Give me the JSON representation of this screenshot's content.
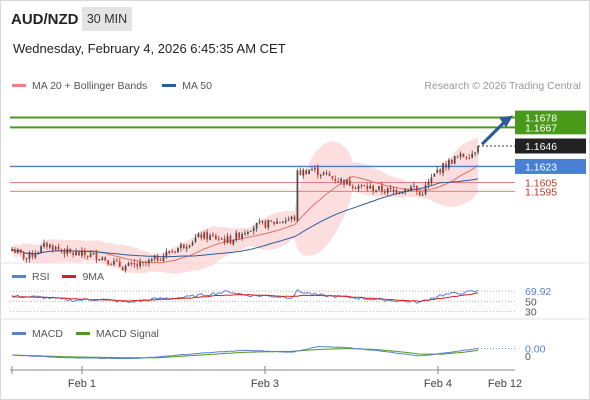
{
  "header": {
    "pair": "AUD/NZD",
    "timeframe": "30 MIN",
    "datetime": "Wednesday, February 4, 2026 6:45:35 AM CET",
    "credit": "Research © 2026 Trading Central"
  },
  "legend": [
    {
      "label": "MA 20 + Bollinger Bands",
      "color": "#f08080"
    },
    {
      "label": "MA 50",
      "color": "#2f5b9a"
    }
  ],
  "rsi_legend": [
    {
      "label": "RSI",
      "color": "#5b7fd1"
    },
    {
      "label": "9MA",
      "color": "#d42020"
    }
  ],
  "macd_legend": [
    {
      "label": "MACD",
      "color": "#5b7fd1"
    },
    {
      "label": "MACD Signal",
      "color": "#4c9a1e"
    }
  ],
  "colors": {
    "up": "#4a4a4a",
    "down": "#c0392b",
    "bb_fill": "#fbd3d3",
    "ma20": "#e07070",
    "ma50": "#2f5b9a",
    "target": "#4a9a1a",
    "pivot": "#4a7fd6",
    "support": "#e08080",
    "arrow": "#2f5b9a"
  },
  "chart_data": [
    {
      "type": "candlestick",
      "title": "AUD/NZD 30 MIN",
      "ylim": [
        1.152,
        1.17
      ],
      "x_ticks": [
        "Feb 1",
        "Feb 3",
        "Feb 4",
        "Feb 12"
      ],
      "seed": 7,
      "path": [
        [
          0,
          1.153
        ],
        [
          5,
          1.152
        ],
        [
          12,
          1.1535
        ],
        [
          20,
          1.1525
        ],
        [
          30,
          1.1522
        ],
        [
          38,
          1.151
        ],
        [
          45,
          1.1512
        ],
        [
          55,
          1.1528
        ],
        [
          65,
          1.1545
        ],
        [
          75,
          1.154
        ],
        [
          82,
          1.1555
        ],
        [
          90,
          1.156
        ],
        [
          97,
          1.1565
        ],
        [
          98,
          1.1615
        ],
        [
          103,
          1.162
        ],
        [
          110,
          1.161
        ],
        [
          120,
          1.16
        ],
        [
          130,
          1.1595
        ],
        [
          138,
          1.16
        ],
        [
          140,
          1.159
        ],
        [
          146,
          1.1618
        ],
        [
          152,
          1.1632
        ],
        [
          158,
          1.1638
        ],
        [
          160,
          1.1646
        ]
      ],
      "levels": [
        {
          "label": "1.1678",
          "value": 1.1678,
          "role": "target"
        },
        {
          "label": "1.1667",
          "value": 1.1667,
          "role": "target"
        },
        {
          "label": "1.1646",
          "value": 1.1646,
          "role": "last"
        },
        {
          "label": "1.1623",
          "value": 1.1623,
          "role": "pivot"
        },
        {
          "label": "1.1605",
          "value": 1.1605,
          "role": "support"
        },
        {
          "label": "1.1595",
          "value": 1.1595,
          "role": "support"
        }
      ]
    },
    {
      "type": "line",
      "title": "RSI",
      "ylim": [
        25,
        80
      ],
      "ref_lines": [
        70,
        50,
        30
      ],
      "y_labels": [
        {
          "label": "69.92",
          "value": 69.92
        },
        {
          "label": "50",
          "value": 50
        },
        {
          "label": "30",
          "value": 30
        }
      ],
      "series": [
        {
          "name": "RSI",
          "points": [
            [
              0,
              60
            ],
            [
              10,
              58
            ],
            [
              20,
              52
            ],
            [
              30,
              54
            ],
            [
              40,
              48
            ],
            [
              50,
              55
            ],
            [
              60,
              58
            ],
            [
              70,
              66
            ],
            [
              75,
              69
            ],
            [
              80,
              62
            ],
            [
              90,
              60
            ],
            [
              96,
              58
            ],
            [
              98,
              70
            ],
            [
              105,
              62
            ],
            [
              115,
              58
            ],
            [
              125,
              54
            ],
            [
              135,
              50
            ],
            [
              140,
              48
            ],
            [
              147,
              62
            ],
            [
              155,
              67
            ],
            [
              160,
              69.92
            ]
          ]
        },
        {
          "name": "9MA",
          "points": [
            [
              0,
              59
            ],
            [
              10,
              58
            ],
            [
              20,
              55
            ],
            [
              30,
              53
            ],
            [
              40,
              51
            ],
            [
              50,
              53
            ],
            [
              60,
              56
            ],
            [
              70,
              61
            ],
            [
              80,
              63
            ],
            [
              90,
              61
            ],
            [
              96,
              59
            ],
            [
              100,
              62
            ],
            [
              110,
              61
            ],
            [
              120,
              57
            ],
            [
              130,
              53
            ],
            [
              140,
              50
            ],
            [
              148,
              56
            ],
            [
              155,
              62
            ],
            [
              160,
              66
            ]
          ]
        }
      ]
    },
    {
      "type": "line",
      "title": "MACD",
      "ylim": [
        -0.0012,
        0.0014
      ],
      "ref_lines": [
        0.0
      ],
      "y_labels": [
        {
          "label": "0.00",
          "value": 0.0008
        },
        {
          "label": "0",
          "value": 0.0
        }
      ],
      "series": [
        {
          "name": "MACD",
          "points": [
            [
              0,
              0.0001
            ],
            [
              20,
              -0.0002
            ],
            [
              40,
              -0.0003
            ],
            [
              50,
              -0.0001
            ],
            [
              65,
              0.0003
            ],
            [
              80,
              0.0006
            ],
            [
              96,
              0.0004
            ],
            [
              105,
              0.001
            ],
            [
              115,
              0.0009
            ],
            [
              125,
              0.0006
            ],
            [
              135,
              0.0002
            ],
            [
              140,
              0.0
            ],
            [
              148,
              0.0003
            ],
            [
              155,
              0.0006
            ],
            [
              160,
              0.0008
            ]
          ]
        },
        {
          "name": "MACD Signal",
          "points": [
            [
              0,
              0.0001
            ],
            [
              20,
              -0.0001
            ],
            [
              40,
              -0.0002
            ],
            [
              50,
              -0.0002
            ],
            [
              65,
              0.0001
            ],
            [
              80,
              0.0004
            ],
            [
              96,
              0.0005
            ],
            [
              105,
              0.0007
            ],
            [
              115,
              0.0008
            ],
            [
              125,
              0.0007
            ],
            [
              135,
              0.0004
            ],
            [
              140,
              0.0002
            ],
            [
              148,
              0.0002
            ],
            [
              155,
              0.0004
            ],
            [
              160,
              0.0006
            ]
          ]
        }
      ]
    }
  ]
}
